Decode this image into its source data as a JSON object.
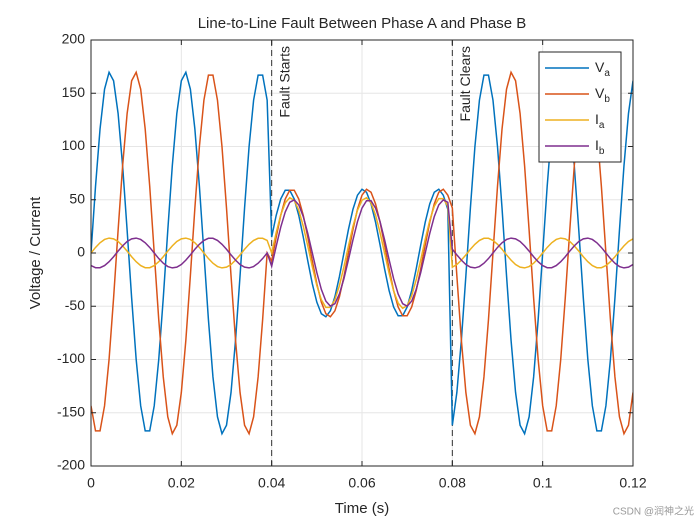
{
  "chart_data": {
    "type": "line",
    "title": "Line-to-Line Fault Between Phase A and Phase B",
    "xlabel": "Time (s)",
    "ylabel": "Voltage / Current",
    "watermark": "CSDN @润神之光",
    "xlim": [
      0,
      0.12
    ],
    "xticks": [
      0,
      0.02,
      0.04,
      0.06,
      0.08,
      0.1,
      0.12
    ],
    "ylim": [
      -200,
      200
    ],
    "yticks": [
      -200,
      -150,
      -100,
      -50,
      0,
      50,
      100,
      150,
      200
    ],
    "grid": true,
    "legend": "northeast",
    "annotations": [
      {
        "text": "Fault Starts",
        "x": 0.04
      },
      {
        "text": "Fault Clears",
        "x": 0.08
      }
    ],
    "x": [
      0,
      0.001,
      0.002,
      0.003,
      0.004,
      0.005,
      0.006,
      0.007,
      0.008,
      0.009,
      0.01,
      0.011,
      0.012,
      0.013,
      0.014,
      0.015,
      0.016,
      0.017,
      0.018,
      0.019,
      0.02,
      0.021,
      0.022,
      0.023,
      0.024,
      0.025,
      0.026,
      0.027,
      0.028,
      0.029,
      0.03,
      0.031,
      0.032,
      0.033,
      0.034,
      0.035,
      0.036,
      0.037,
      0.038,
      0.039,
      0.04,
      0.041,
      0.042,
      0.043,
      0.044,
      0.045,
      0.046,
      0.047,
      0.048,
      0.049,
      0.05,
      0.051,
      0.052,
      0.053,
      0.054,
      0.055,
      0.056,
      0.057,
      0.058,
      0.059,
      0.06,
      0.061,
      0.062,
      0.063,
      0.064,
      0.065,
      0.066,
      0.067,
      0.068,
      0.069,
      0.07,
      0.071,
      0.072,
      0.073,
      0.074,
      0.075,
      0.076,
      0.077,
      0.078,
      0.079,
      0.08,
      0.081,
      0.082,
      0.083,
      0.084,
      0.085,
      0.086,
      0.087,
      0.088,
      0.089,
      0.09,
      0.091,
      0.092,
      0.093,
      0.094,
      0.095,
      0.096,
      0.097,
      0.098,
      0.099,
      0.1,
      0.101,
      0.102,
      0.103,
      0.104,
      0.105,
      0.106,
      0.107,
      0.108,
      0.109,
      0.11,
      0.111,
      0.112,
      0.113,
      0.114,
      0.115,
      0.116,
      0.117,
      0.118,
      0.119,
      0.12
    ],
    "series": [
      {
        "name": "Va",
        "color": "#0072BD",
        "values": [
          0,
          62.6,
          116.4,
          153.8,
          169.7,
          161.7,
          131.0,
          81.9,
          21.3,
          -42.3,
          -99.9,
          -143.5,
          -167.0,
          -167.0,
          -143.5,
          -99.9,
          -42.3,
          21.3,
          81.9,
          131.0,
          161.7,
          169.7,
          153.8,
          116.4,
          62.6,
          0,
          -62.6,
          -116.4,
          -153.8,
          -169.7,
          -161.7,
          -131.0,
          -81.9,
          -21.3,
          42.3,
          99.9,
          143.5,
          167.0,
          167.0,
          143.5,
          14.9,
          35.3,
          50.7,
          58.9,
          58.9,
          50.7,
          35.3,
          14.9,
          -7.5,
          -28.9,
          -46.2,
          -57.1,
          -59.9,
          -54.3,
          -41.1,
          -22.1,
          0,
          22.1,
          41.1,
          54.3,
          59.9,
          57.1,
          46.2,
          28.9,
          7.5,
          -14.9,
          -35.3,
          -50.7,
          -58.9,
          -58.9,
          -50.7,
          -35.3,
          -14.9,
          7.5,
          28.9,
          46.2,
          57.1,
          59.9,
          54.3,
          41.1,
          -161.7,
          -131.0,
          -81.9,
          -21.3,
          42.3,
          99.9,
          143.5,
          167.0,
          167.0,
          143.5,
          99.9,
          42.3,
          -21.3,
          -81.9,
          -131.0,
          -161.7,
          -169.7,
          -153.8,
          -116.4,
          -62.6,
          0,
          62.6,
          116.4,
          153.8,
          169.7,
          161.7,
          131.0,
          81.9,
          21.3,
          -42.3,
          -99.9,
          -143.5,
          -167.0,
          -167.0,
          -143.5,
          -99.9,
          -42.3,
          21.3,
          81.9,
          131.0,
          161.7
        ]
      },
      {
        "name": "Vb",
        "color": "#D95319",
        "values": [
          -143.5,
          -167.0,
          -167.0,
          -143.5,
          -99.9,
          -42.3,
          21.3,
          81.9,
          131.0,
          161.7,
          169.7,
          153.8,
          116.4,
          62.6,
          0,
          -62.6,
          -116.4,
          -153.8,
          -169.7,
          -161.7,
          -131.0,
          -81.9,
          -21.3,
          42.3,
          99.9,
          143.5,
          167.0,
          167.0,
          143.5,
          99.9,
          42.3,
          -21.3,
          -81.9,
          -131.0,
          -161.7,
          -169.7,
          -153.8,
          -116.4,
          -62.6,
          0,
          -7.5,
          14.9,
          35.3,
          50.7,
          58.9,
          58.9,
          50.7,
          35.3,
          14.9,
          -7.5,
          -28.9,
          -46.2,
          -57.1,
          -59.9,
          -54.3,
          -41.1,
          -22.1,
          0,
          22.1,
          41.1,
          54.3,
          59.9,
          57.1,
          46.2,
          28.9,
          7.5,
          -14.9,
          -35.3,
          -50.7,
          -58.9,
          -58.9,
          -50.7,
          -35.3,
          -14.9,
          7.5,
          28.9,
          46.2,
          57.1,
          59.9,
          54.3,
          42.3,
          -21.3,
          -81.9,
          -131.0,
          -161.7,
          -169.7,
          -153.8,
          -116.4,
          -62.6,
          0,
          62.6,
          116.4,
          153.8,
          169.7,
          161.7,
          131.0,
          81.9,
          21.3,
          -42.3,
          -99.9,
          -143.5,
          -167.0,
          -167.0,
          -143.5,
          -99.9,
          -42.3,
          21.3,
          81.9,
          131.0,
          161.7,
          169.7,
          153.8,
          116.4,
          62.6,
          0,
          -62.6,
          -116.4,
          -153.8,
          -169.7,
          -161.7,
          -131.0
        ]
      },
      {
        "name": "Ia",
        "color": "#EDB120",
        "values": [
          0,
          5.2,
          9.6,
          12.7,
          14.0,
          13.3,
          10.8,
          6.7,
          1.8,
          -3.5,
          -8.2,
          -11.8,
          -13.8,
          -13.8,
          -11.8,
          -8.2,
          -3.5,
          1.8,
          6.7,
          10.8,
          13.3,
          14.0,
          12.7,
          9.6,
          5.2,
          0,
          -5.2,
          -9.6,
          -12.7,
          -14.0,
          -13.3,
          -10.8,
          -6.7,
          -1.8,
          3.5,
          8.2,
          11.8,
          13.8,
          13.8,
          11.8,
          0,
          19.1,
          35.6,
          47.0,
          51.9,
          49.5,
          40.1,
          25.1,
          6.5,
          -12.9,
          -30.6,
          -43.9,
          -51.1,
          -51.1,
          -43.9,
          -30.6,
          -12.9,
          6.5,
          25.1,
          40.1,
          49.5,
          51.9,
          47.0,
          35.6,
          19.1,
          0,
          -19.1,
          -35.6,
          -47.0,
          -51.9,
          -49.5,
          -40.1,
          -25.1,
          -6.5,
          12.9,
          30.6,
          43.9,
          51.1,
          51.1,
          43.9,
          -13.3,
          -10.8,
          -6.7,
          -1.8,
          3.5,
          8.2,
          11.8,
          13.8,
          13.8,
          11.8,
          8.2,
          3.5,
          -1.8,
          -6.7,
          -10.8,
          -13.3,
          -14.0,
          -12.7,
          -9.6,
          -5.2,
          0,
          5.2,
          9.6,
          12.7,
          14.0,
          13.3,
          10.8,
          6.7,
          1.8,
          -3.5,
          -8.2,
          -11.8,
          -13.8,
          -13.8,
          -11.8,
          -8.2,
          -3.5,
          1.8,
          6.7,
          10.8,
          13.3
        ]
      },
      {
        "name": "Ib",
        "color": "#7E2F8E",
        "values": [
          -11.8,
          -13.8,
          -13.8,
          -11.8,
          -8.2,
          -3.5,
          1.8,
          6.7,
          10.8,
          13.3,
          14.0,
          12.7,
          9.6,
          5.2,
          0,
          -5.2,
          -9.6,
          -12.7,
          -14.0,
          -13.3,
          -10.8,
          -6.7,
          -1.8,
          3.5,
          8.2,
          11.8,
          13.8,
          13.8,
          11.8,
          8.2,
          3.5,
          -1.8,
          -6.7,
          -10.8,
          -13.3,
          -14.0,
          -12.7,
          -9.6,
          -5.2,
          0,
          -12.4,
          6.3,
          24.1,
          38.5,
          47.6,
          49.9,
          45.2,
          34.2,
          18.4,
          0,
          -18.4,
          -34.2,
          -45.2,
          -49.9,
          -47.6,
          -38.5,
          -24.1,
          -6.3,
          12.4,
          29.4,
          42.2,
          49.1,
          49.1,
          42.2,
          29.4,
          12.4,
          -6.3,
          -24.1,
          -38.5,
          -47.6,
          -49.9,
          -45.2,
          -34.2,
          -18.4,
          0,
          18.4,
          34.2,
          45.2,
          49.9,
          47.6,
          3.5,
          -1.8,
          -6.7,
          -10.8,
          -13.3,
          -14.0,
          -12.7,
          -9.6,
          -5.2,
          0,
          5.2,
          9.6,
          12.7,
          14.0,
          13.3,
          10.8,
          6.7,
          1.8,
          -3.5,
          -8.2,
          -11.8,
          -13.8,
          -13.8,
          -11.8,
          -8.2,
          -3.5,
          1.8,
          6.7,
          10.8,
          13.3,
          14.0,
          12.7,
          9.6,
          5.2,
          0,
          -5.2,
          -9.6,
          -12.7,
          -14.0,
          -13.3,
          -10.8
        ]
      }
    ]
  }
}
